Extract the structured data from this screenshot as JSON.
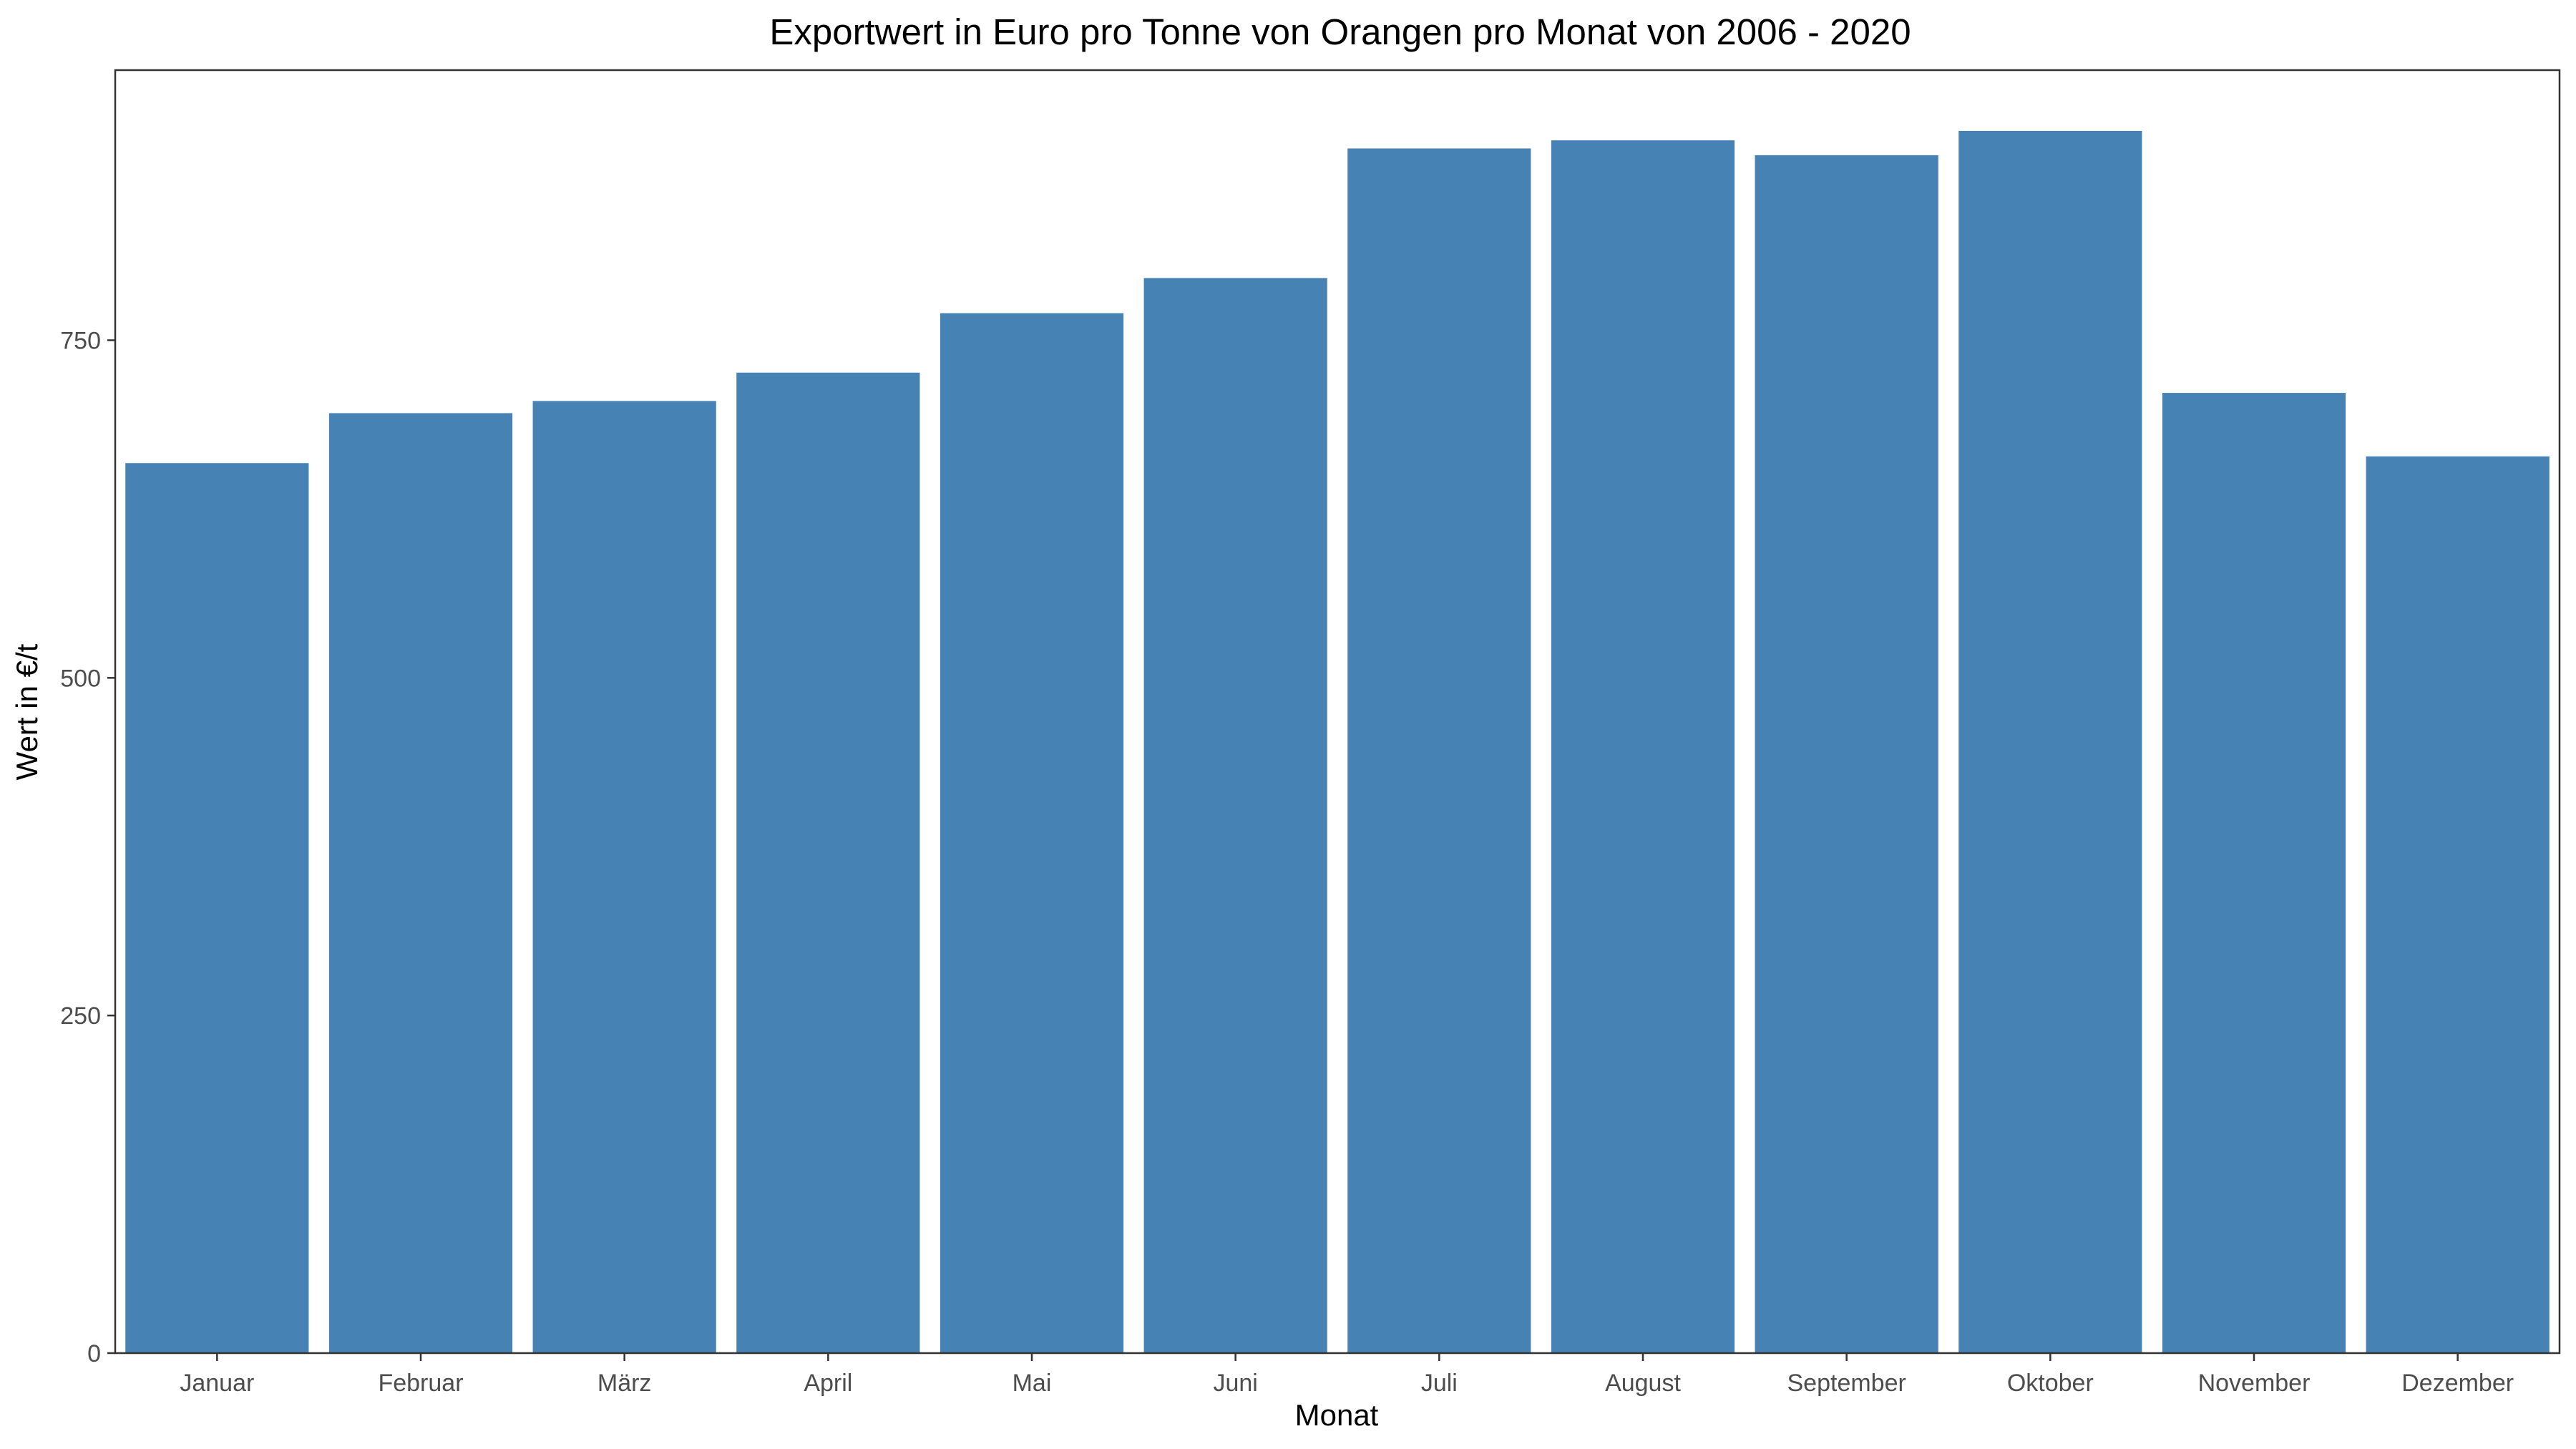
{
  "chart_data": {
    "type": "bar",
    "title": "Exportwert in Euro pro Tonne von Orangen pro Monat von 2006 - 2020",
    "xlabel": "Monat",
    "ylabel": "Wert in €/t",
    "categories": [
      "Januar",
      "Februar",
      "März",
      "April",
      "Mai",
      "Juni",
      "Juli",
      "August",
      "September",
      "Oktober",
      "November",
      "Dezember"
    ],
    "values": [
      659,
      696,
      705,
      726,
      770,
      796,
      892,
      898,
      887,
      905,
      711,
      664
    ],
    "ylim": [
      0,
      950
    ],
    "yticks": [
      0,
      250,
      500,
      750
    ],
    "ytick_labels": [
      "0",
      "250",
      "500",
      "750"
    ],
    "bar_color": "#4682b4",
    "grid": false,
    "legend": "none"
  }
}
